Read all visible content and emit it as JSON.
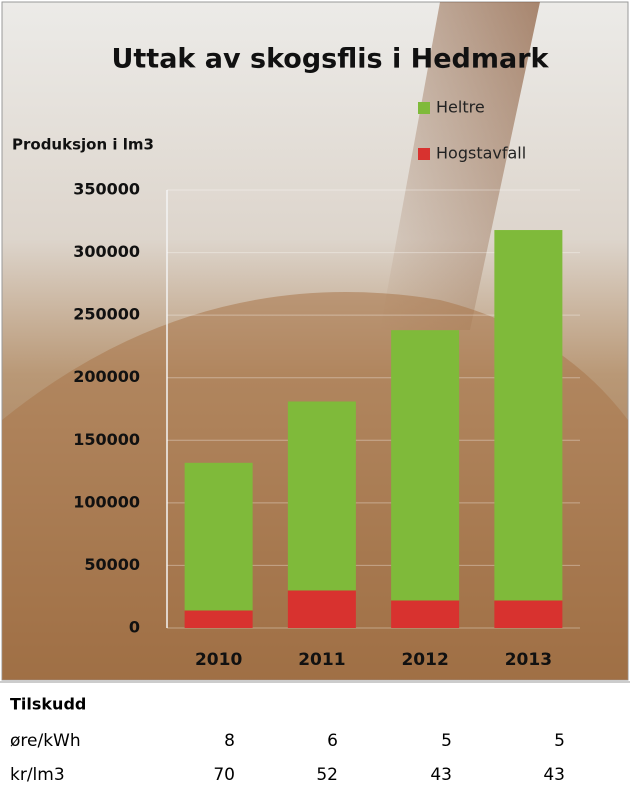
{
  "chart_data": {
    "type": "stacked_bar",
    "title": "Uttak av skogsflis i Hedmark",
    "y_label": "Produksjon  i lm3",
    "categories": [
      "2010",
      "2011",
      "2012",
      "2013"
    ],
    "series": [
      {
        "name": "Heltre",
        "color": "#7fba3a",
        "values": [
          118000,
          151000,
          216000,
          296000
        ]
      },
      {
        "name": "Hogstavfall",
        "color": "#d8322f",
        "values": [
          14000,
          30000,
          22000,
          22000
        ]
      }
    ],
    "ylim": [
      0,
      350000
    ],
    "yticks": [
      0,
      50000,
      100000,
      150000,
      200000,
      250000,
      300000,
      350000
    ],
    "grid": true
  },
  "table": {
    "header": "Tilskudd",
    "rows": [
      [
        "øre/kWh",
        8,
        6,
        5,
        5
      ],
      [
        "kr/lm3",
        70,
        52,
        43,
        43
      ]
    ]
  }
}
